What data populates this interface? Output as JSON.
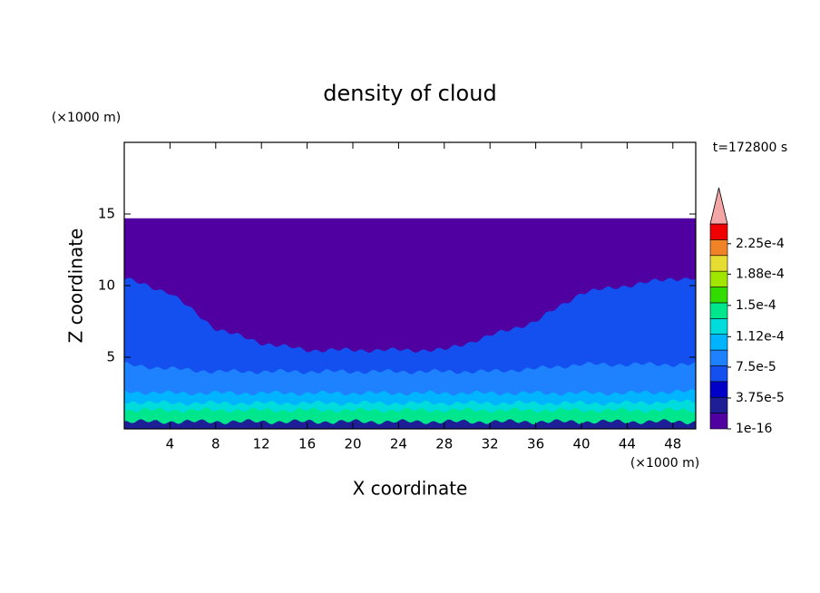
{
  "chart_data": {
    "type": "contour",
    "title": "density of cloud",
    "x_label": "X coordinate",
    "y_label": "Z coordinate",
    "x_unit": "(×1000 m)",
    "y_unit": "(×1000 m)",
    "annotation": "t=172800 s",
    "xlim": [
      0,
      50
    ],
    "ylim": [
      0,
      20
    ],
    "xticks": [
      4,
      8,
      12,
      16,
      20,
      24,
      28,
      32,
      36,
      40,
      44,
      48
    ],
    "yticks": [
      5,
      10,
      15
    ],
    "colorbar": {
      "clim": [
        1e-16,
        0.000249
      ],
      "ticks": [
        {
          "value": 1e-16,
          "label": "1e-16"
        },
        {
          "value": 3.75e-05,
          "label": "3.75e-5"
        },
        {
          "value": 7.5e-05,
          "label": "7.5e-5"
        },
        {
          "value": 0.000112,
          "label": "1.12e-4"
        },
        {
          "value": 0.00015,
          "label": "1.5e-4"
        },
        {
          "value": 0.000188,
          "label": "1.88e-4"
        },
        {
          "value": 0.000225,
          "label": "2.25e-4"
        }
      ],
      "colors": [
        "#5000a0",
        "#1e1e96",
        "#0000c8",
        "#1450f0",
        "#1e82ff",
        "#00b4ff",
        "#00dcdc",
        "#00e68c",
        "#32dc00",
        "#a0e600",
        "#e6dc32",
        "#f08228",
        "#f00000"
      ],
      "extend_color": "#f4a6a6"
    },
    "field": {
      "x": [
        0,
        4,
        8,
        12,
        16,
        20,
        24,
        28,
        32,
        36,
        40,
        44,
        48,
        50
      ],
      "layers": [
        {
          "density": 1e-16,
          "z_top": [
            14.7,
            14.7,
            14.7,
            14.7,
            14.7,
            14.7,
            14.7,
            14.7,
            14.7,
            14.7,
            14.7,
            14.7,
            14.7,
            14.7
          ]
        },
        {
          "density": 6e-05,
          "z_top": [
            10.5,
            9.5,
            7,
            6,
            5.5,
            5.5,
            5.5,
            5.5,
            6.5,
            7.5,
            9.5,
            10,
            10.5,
            10.5
          ]
        },
        {
          "density": 8e-05,
          "z_top": [
            4.5,
            4.2,
            4,
            4,
            4,
            4,
            4,
            4,
            4,
            4.2,
            4.5,
            4.5,
            4.5,
            4.5
          ]
        },
        {
          "density": 0.0001,
          "z_top": [
            2.6,
            2.5,
            2.5,
            2.5,
            2.5,
            2.5,
            2.5,
            2.5,
            2.5,
            2.5,
            2.5,
            2.5,
            2.6,
            2.6
          ]
        },
        {
          "density": 0.00012,
          "z_top": [
            1.9,
            1.8,
            1.8,
            1.8,
            1.8,
            1.8,
            1.8,
            1.8,
            1.8,
            1.8,
            1.8,
            1.8,
            1.9,
            1.9
          ]
        },
        {
          "density": 0.00015,
          "z_top": [
            1.3,
            1.3,
            1.3,
            1.3,
            1.3,
            1.3,
            1.3,
            1.3,
            1.3,
            1.3,
            1.3,
            1.3,
            1.3,
            1.3
          ]
        },
        {
          "density": 2e-05,
          "z_top": [
            0.5,
            0.5,
            0.5,
            0.5,
            0.5,
            0.5,
            0.5,
            0.5,
            0.5,
            0.5,
            0.5,
            0.5,
            0.5,
            0.5
          ]
        }
      ]
    }
  }
}
